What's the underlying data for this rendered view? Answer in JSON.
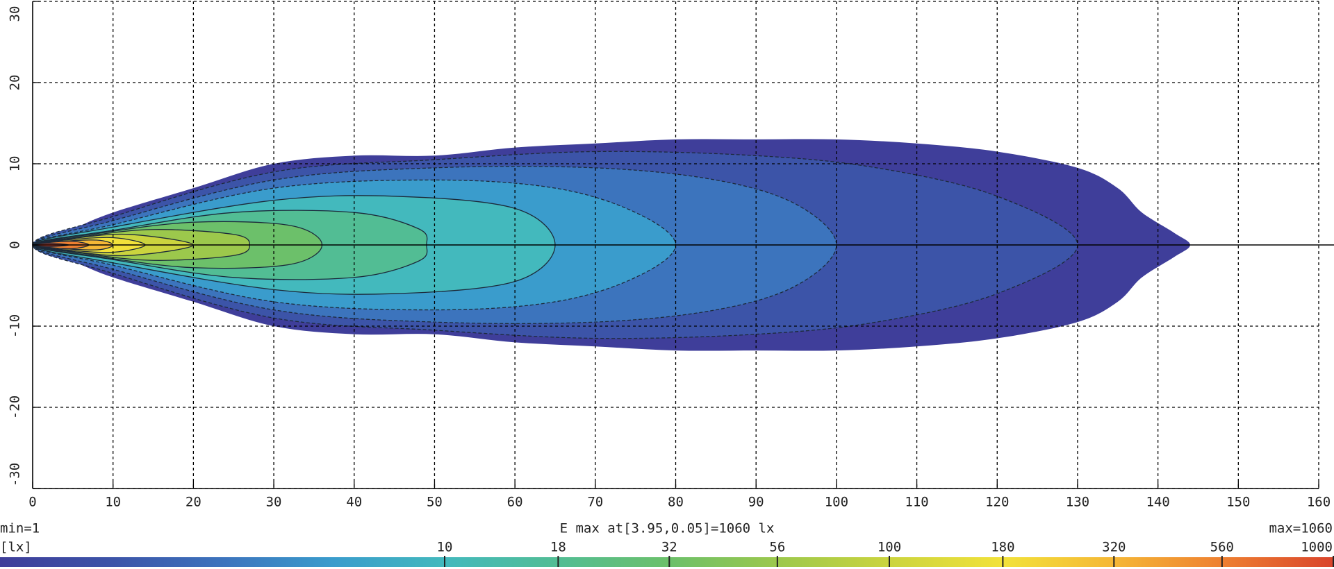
{
  "chart_data": {
    "type": "contour",
    "xlim": [
      0,
      160
    ],
    "ylim": [
      -30,
      30
    ],
    "xticks": [
      0,
      10,
      20,
      30,
      40,
      50,
      60,
      70,
      80,
      90,
      100,
      110,
      120,
      130,
      140,
      150,
      160
    ],
    "yticks": [
      -30,
      -20,
      -10,
      0,
      10,
      20,
      30
    ],
    "grid": true,
    "min_label": "min=1",
    "emax_label": "E max at[3.95,0.05]=1060 lx",
    "max_label": "max=1060",
    "unit_label": "[lx]",
    "colorbar_lim": [
      1,
      1000
    ],
    "colorbar_ticks": [
      10,
      18,
      32,
      56,
      100,
      180,
      320,
      560,
      1000
    ],
    "contours": [
      {
        "level": 1,
        "color": "#3f3e9a",
        "x": [
          0,
          5,
          10,
          20,
          30,
          40,
          50,
          60,
          70,
          80,
          90,
          100,
          110,
          120,
          130,
          135,
          138,
          142,
          144
        ],
        "y": [
          0,
          2,
          4,
          7,
          10,
          11,
          11,
          12,
          12.5,
          13,
          13,
          13,
          12.5,
          11.5,
          9.5,
          7,
          4,
          1.5,
          0
        ]
      },
      {
        "level": 1.8,
        "color": "#3c54a8",
        "x": [
          0,
          10,
          30,
          50,
          70,
          90,
          105,
          120,
          130
        ],
        "y": [
          0,
          3.5,
          9,
          10.5,
          11.5,
          11,
          9.5,
          6,
          0
        ]
      },
      {
        "level": 3.2,
        "color": "#3c74bd",
        "x": [
          0,
          10,
          30,
          50,
          70,
          85,
          95,
          100
        ],
        "y": [
          0,
          3,
          8,
          9.5,
          9.5,
          8,
          5,
          0
        ]
      },
      {
        "level": 5.6,
        "color": "#3a9ccc",
        "x": [
          0,
          10,
          30,
          50,
          65,
          75,
          80
        ],
        "y": [
          0,
          2.5,
          7,
          8,
          7,
          4,
          0
        ]
      },
      {
        "level": 10,
        "color": "#43b9bd",
        "x": [
          0,
          10,
          30,
          45,
          60,
          65
        ],
        "y": [
          0,
          2.2,
          5.5,
          6,
          4.5,
          0
        ]
      },
      {
        "level": 18,
        "color": "#52bd94",
        "x": [
          0,
          10,
          25,
          40,
          48,
          49
        ],
        "y": [
          0,
          1.8,
          4,
          4,
          2,
          0
        ]
      },
      {
        "level": 32,
        "color": "#6cc06a",
        "x": [
          0,
          8,
          20,
          32,
          36
        ],
        "y": [
          0,
          1.4,
          2.8,
          2.4,
          0
        ]
      },
      {
        "level": 56,
        "color": "#9cc84c",
        "x": [
          0,
          6,
          15,
          25,
          27
        ],
        "y": [
          0,
          1,
          1.9,
          1.3,
          0
        ]
      },
      {
        "level": 100,
        "color": "#cbd43e",
        "x": [
          0,
          5,
          12,
          20
        ],
        "y": [
          0,
          0.8,
          1.3,
          0
        ]
      },
      {
        "level": 180,
        "color": "#f2e23a",
        "x": [
          0,
          4,
          10,
          14
        ],
        "y": [
          0,
          0.6,
          0.9,
          0
        ]
      },
      {
        "level": 320,
        "color": "#f5b736",
        "x": [
          0,
          3,
          8,
          10
        ],
        "y": [
          0,
          0.4,
          0.6,
          0
        ]
      },
      {
        "level": 560,
        "color": "#ee8031",
        "x": [
          0,
          2,
          5,
          7
        ],
        "y": [
          0,
          0.3,
          0.45,
          0
        ]
      },
      {
        "level": 1000,
        "color": "#d9442c",
        "x": [
          0,
          2,
          4.5
        ],
        "y": [
          0,
          0.2,
          0
        ]
      }
    ]
  }
}
